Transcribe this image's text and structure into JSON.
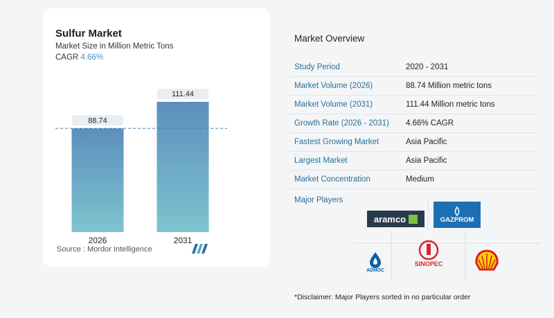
{
  "title": "Sulfur Market",
  "subtitle": "Market Size in Million Metric Tons",
  "cagr_label": "CAGR",
  "cagr_value": "4.66%",
  "source": "Source : Mordor Intelligence",
  "chart_data": {
    "type": "bar",
    "categories": [
      "2026",
      "2031"
    ],
    "values": [
      88.74,
      111.44
    ],
    "value_labels": [
      "88.74",
      "111.44"
    ],
    "title": "Sulfur Market",
    "xlabel": "",
    "ylabel": "",
    "ylim": [
      0,
      130
    ],
    "grid": false,
    "reference_line_value": 88.74,
    "colors": {
      "bar_top": "#5b8fbd",
      "bar_bottom": "#7ec4cf",
      "label_bg": "#e9eef2"
    }
  },
  "overview": {
    "title": "Market Overview",
    "rows": [
      {
        "key": "Study Period",
        "value": "2020 - 2031"
      },
      {
        "key": "Market Volume (2026)",
        "value": "88.74 Million metric tons"
      },
      {
        "key": "Market Volume (2031)",
        "value": "111.44 Million metric tons"
      },
      {
        "key": "Growth Rate (2026 - 2031)",
        "value": "4.66% CAGR"
      },
      {
        "key": "Fastest Growing Market",
        "value": "Asia Pacific"
      },
      {
        "key": "Largest Market",
        "value": "Asia Pacific"
      },
      {
        "key": "Market Concentration",
        "value": "Medium"
      }
    ],
    "players_label": "Major Players",
    "players": [
      "aramco",
      "GAZPROM",
      "ADNOC",
      "SINOPEC",
      "Shell"
    ],
    "disclaimer": "*Disclaimer: Major Players sorted in no particular order"
  }
}
